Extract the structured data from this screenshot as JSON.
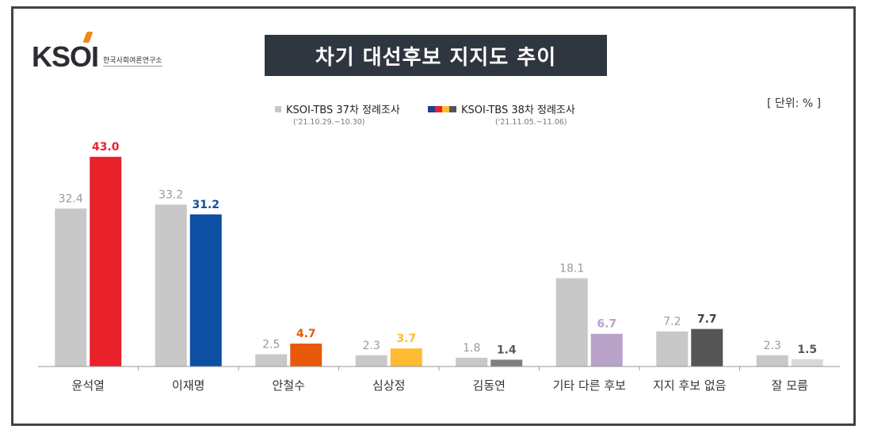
{
  "logo": {
    "text": "KSOI",
    "subtitle": "한국사회여론연구소"
  },
  "title": "차기 대선후보 지지도 추이",
  "unit_label": "[ 단위: % ]",
  "legend": [
    {
      "label": "KSOI-TBS 37차 정례조사",
      "date": "('21.10.29.~10.30)",
      "color": "#c8c8c8"
    },
    {
      "label": "KSOI-TBS 38차 정례조사",
      "date": "('21.11.05.~11.06)",
      "colors": [
        "#1f3f91",
        "#e8212b",
        "#ffbb33",
        "#555555"
      ]
    }
  ],
  "chart_data": {
    "type": "bar",
    "title": "차기 대선후보 지지도 추이",
    "xlabel": "",
    "ylabel": "",
    "unit": "%",
    "categories": [
      "윤석열",
      "이재명",
      "안철수",
      "심상정",
      "김동연",
      "기타 다른 후보",
      "지지 후보 없음",
      "잘 모름"
    ],
    "series": [
      {
        "name": "KSOI-TBS 37차 정례조사",
        "values": [
          32.4,
          33.2,
          2.5,
          2.3,
          1.8,
          18.1,
          7.2,
          2.3
        ],
        "colors": [
          "#c8c8c8",
          "#c8c8c8",
          "#c8c8c8",
          "#c8c8c8",
          "#c8c8c8",
          "#c8c8c8",
          "#c8c8c8",
          "#c8c8c8"
        ],
        "label_colors": [
          "#9a9a9a",
          "#9a9a9a",
          "#9a9a9a",
          "#9a9a9a",
          "#9a9a9a",
          "#9a9a9a",
          "#9a9a9a",
          "#9a9a9a"
        ]
      },
      {
        "name": "KSOI-TBS 38차 정례조사",
        "values": [
          43.0,
          31.2,
          4.7,
          3.7,
          1.4,
          6.7,
          7.7,
          1.5
        ],
        "colors": [
          "#e8212b",
          "#0d4fa3",
          "#e8590c",
          "#ffbb33",
          "#7f7f7f",
          "#b8a2c8",
          "#555555",
          "#d9d9d9"
        ],
        "label_colors": [
          "#e8212b",
          "#0d4fa3",
          "#e8590c",
          "#ffbb33",
          "#595959",
          "#b8a2c8",
          "#404040",
          "#595959"
        ]
      }
    ],
    "ylim": [
      0,
      50
    ],
    "grid": false
  }
}
